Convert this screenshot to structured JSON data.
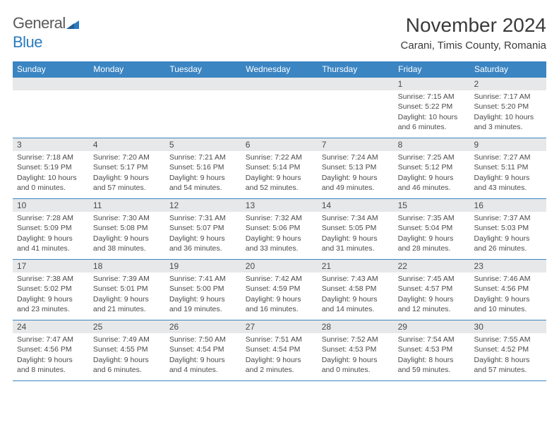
{
  "logo": {
    "text_main": "General",
    "text_accent": "Blue",
    "accent_color": "#2b7bbf",
    "main_color": "#5a5a5a"
  },
  "title": "November 2024",
  "location": "Carani, Timis County, Romania",
  "header_bg": "#3b85c2",
  "header_fg": "#ffffff",
  "daynum_bg": "#e7e8e9",
  "border_color": "#3b85c2",
  "text_color": "#4a4a4a",
  "day_headers": [
    "Sunday",
    "Monday",
    "Tuesday",
    "Wednesday",
    "Thursday",
    "Friday",
    "Saturday"
  ],
  "weeks": [
    [
      null,
      null,
      null,
      null,
      null,
      {
        "n": "1",
        "sr": "7:15 AM",
        "ss": "5:22 PM",
        "dl": "10 hours and 6 minutes."
      },
      {
        "n": "2",
        "sr": "7:17 AM",
        "ss": "5:20 PM",
        "dl": "10 hours and 3 minutes."
      }
    ],
    [
      {
        "n": "3",
        "sr": "7:18 AM",
        "ss": "5:19 PM",
        "dl": "10 hours and 0 minutes."
      },
      {
        "n": "4",
        "sr": "7:20 AM",
        "ss": "5:17 PM",
        "dl": "9 hours and 57 minutes."
      },
      {
        "n": "5",
        "sr": "7:21 AM",
        "ss": "5:16 PM",
        "dl": "9 hours and 54 minutes."
      },
      {
        "n": "6",
        "sr": "7:22 AM",
        "ss": "5:14 PM",
        "dl": "9 hours and 52 minutes."
      },
      {
        "n": "7",
        "sr": "7:24 AM",
        "ss": "5:13 PM",
        "dl": "9 hours and 49 minutes."
      },
      {
        "n": "8",
        "sr": "7:25 AM",
        "ss": "5:12 PM",
        "dl": "9 hours and 46 minutes."
      },
      {
        "n": "9",
        "sr": "7:27 AM",
        "ss": "5:11 PM",
        "dl": "9 hours and 43 minutes."
      }
    ],
    [
      {
        "n": "10",
        "sr": "7:28 AM",
        "ss": "5:09 PM",
        "dl": "9 hours and 41 minutes."
      },
      {
        "n": "11",
        "sr": "7:30 AM",
        "ss": "5:08 PM",
        "dl": "9 hours and 38 minutes."
      },
      {
        "n": "12",
        "sr": "7:31 AM",
        "ss": "5:07 PM",
        "dl": "9 hours and 36 minutes."
      },
      {
        "n": "13",
        "sr": "7:32 AM",
        "ss": "5:06 PM",
        "dl": "9 hours and 33 minutes."
      },
      {
        "n": "14",
        "sr": "7:34 AM",
        "ss": "5:05 PM",
        "dl": "9 hours and 31 minutes."
      },
      {
        "n": "15",
        "sr": "7:35 AM",
        "ss": "5:04 PM",
        "dl": "9 hours and 28 minutes."
      },
      {
        "n": "16",
        "sr": "7:37 AM",
        "ss": "5:03 PM",
        "dl": "9 hours and 26 minutes."
      }
    ],
    [
      {
        "n": "17",
        "sr": "7:38 AM",
        "ss": "5:02 PM",
        "dl": "9 hours and 23 minutes."
      },
      {
        "n": "18",
        "sr": "7:39 AM",
        "ss": "5:01 PM",
        "dl": "9 hours and 21 minutes."
      },
      {
        "n": "19",
        "sr": "7:41 AM",
        "ss": "5:00 PM",
        "dl": "9 hours and 19 minutes."
      },
      {
        "n": "20",
        "sr": "7:42 AM",
        "ss": "4:59 PM",
        "dl": "9 hours and 16 minutes."
      },
      {
        "n": "21",
        "sr": "7:43 AM",
        "ss": "4:58 PM",
        "dl": "9 hours and 14 minutes."
      },
      {
        "n": "22",
        "sr": "7:45 AM",
        "ss": "4:57 PM",
        "dl": "9 hours and 12 minutes."
      },
      {
        "n": "23",
        "sr": "7:46 AM",
        "ss": "4:56 PM",
        "dl": "9 hours and 10 minutes."
      }
    ],
    [
      {
        "n": "24",
        "sr": "7:47 AM",
        "ss": "4:56 PM",
        "dl": "9 hours and 8 minutes."
      },
      {
        "n": "25",
        "sr": "7:49 AM",
        "ss": "4:55 PM",
        "dl": "9 hours and 6 minutes."
      },
      {
        "n": "26",
        "sr": "7:50 AM",
        "ss": "4:54 PM",
        "dl": "9 hours and 4 minutes."
      },
      {
        "n": "27",
        "sr": "7:51 AM",
        "ss": "4:54 PM",
        "dl": "9 hours and 2 minutes."
      },
      {
        "n": "28",
        "sr": "7:52 AM",
        "ss": "4:53 PM",
        "dl": "9 hours and 0 minutes."
      },
      {
        "n": "29",
        "sr": "7:54 AM",
        "ss": "4:53 PM",
        "dl": "8 hours and 59 minutes."
      },
      {
        "n": "30",
        "sr": "7:55 AM",
        "ss": "4:52 PM",
        "dl": "8 hours and 57 minutes."
      }
    ]
  ],
  "labels": {
    "sunrise": "Sunrise:",
    "sunset": "Sunset:",
    "daylight": "Daylight:"
  }
}
